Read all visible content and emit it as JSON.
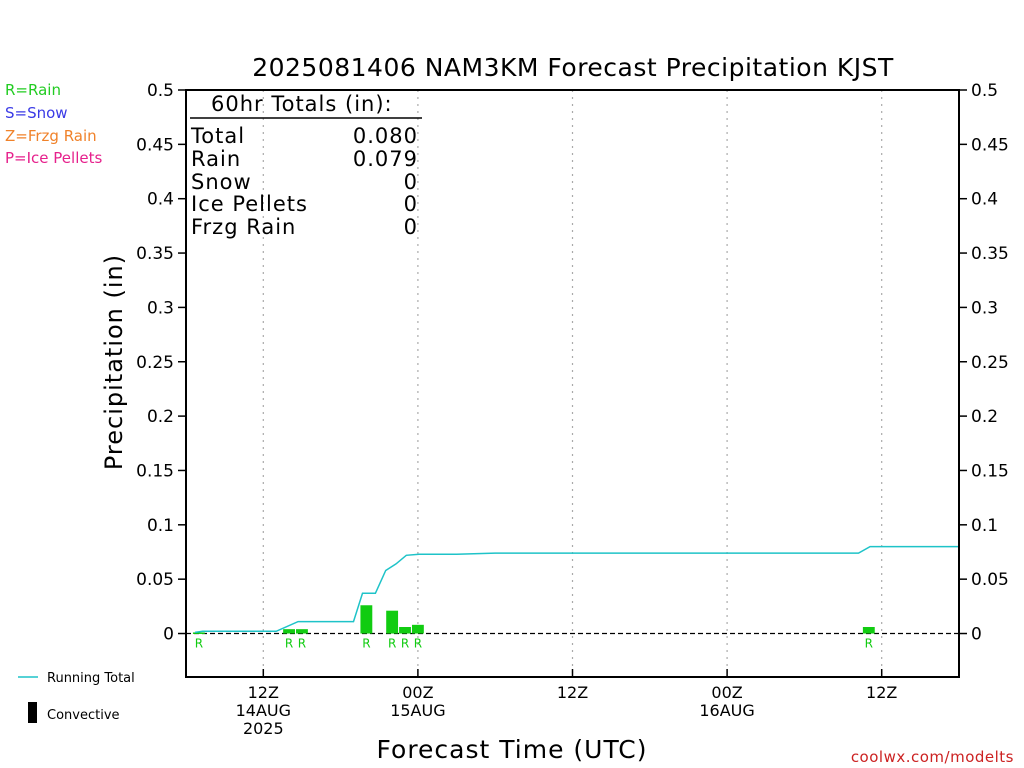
{
  "chart_data": {
    "type": "bar",
    "title": "2025081406 NAM3KM Forecast Precipitation KJST",
    "xlabel": "Forecast Time (UTC)",
    "ylabel": "Precipitation (in)",
    "ylim": [
      -0.04,
      0.5
    ],
    "yticks": [
      0,
      0.05,
      0.1,
      0.15,
      0.2,
      0.25,
      0.3,
      0.35,
      0.4,
      0.45,
      0.5
    ],
    "ytick_labels": [
      "0",
      "0.05",
      "0.1",
      "0.15",
      "0.2",
      "0.25",
      "0.3",
      "0.35",
      "0.4",
      "0.45",
      "0.5"
    ],
    "xlim_hours": [
      6,
      66
    ],
    "x_ticks": [
      {
        "hour": 12,
        "lines": [
          "12Z",
          "14AUG",
          "2025"
        ]
      },
      {
        "hour": 24,
        "lines": [
          "00Z",
          "15AUG"
        ]
      },
      {
        "hour": 36,
        "lines": [
          "12Z"
        ]
      },
      {
        "hour": 48,
        "lines": [
          "00Z",
          "16AUG"
        ]
      },
      {
        "hour": 60,
        "lines": [
          "12Z"
        ]
      }
    ],
    "grid": true,
    "precip_bars": [
      {
        "hour": 7,
        "value": 0.001,
        "type": "R"
      },
      {
        "hour": 14,
        "value": 0.004,
        "type": "R"
      },
      {
        "hour": 15,
        "value": 0.004,
        "type": "R"
      },
      {
        "hour": 20,
        "value": 0.026,
        "type": "R"
      },
      {
        "hour": 22,
        "value": 0.021,
        "type": "R"
      },
      {
        "hour": 23,
        "value": 0.006,
        "type": "R"
      },
      {
        "hour": 24,
        "value": 0.008,
        "type": "R"
      },
      {
        "hour": 59,
        "value": 0.006,
        "type": "R"
      }
    ],
    "running_total": {
      "name": "Running Total",
      "x": [
        6.7,
        7.3,
        13,
        14.7,
        19,
        19.7,
        20.7,
        21.5,
        22.3,
        23.1,
        24.1,
        27,
        30,
        36,
        40,
        48,
        54,
        58.2,
        59.1,
        60,
        66
      ],
      "y": [
        0.001,
        0.002,
        0.002,
        0.011,
        0.011,
        0.037,
        0.037,
        0.058,
        0.064,
        0.072,
        0.073,
        0.073,
        0.074,
        0.074,
        0.074,
        0.074,
        0.074,
        0.074,
        0.08,
        0.08,
        0.08
      ]
    },
    "legend": [
      {
        "label": "R=Rain",
        "color": "#22cc22"
      },
      {
        "label": "S=Snow",
        "color": "#3a3ae6"
      },
      {
        "label": "Z=Frzg Rain",
        "color": "#f0822a"
      },
      {
        "label": "P=Ice Pellets",
        "color": "#e6218c"
      }
    ],
    "bottom_legend": [
      {
        "label": "Running Total",
        "kind": "line",
        "color": "#1ec3c8"
      },
      {
        "label": "Convective",
        "kind": "bar",
        "color": "#000000"
      }
    ],
    "totals_box": {
      "header": "60hr Totals (in):",
      "rows": [
        {
          "label": "Total",
          "value": "0.080"
        },
        {
          "label": "Rain",
          "value": "0.079"
        },
        {
          "label": "Snow",
          "value": "0"
        },
        {
          "label": "Ice Pellets",
          "value": "0"
        },
        {
          "label": "Frzg Rain",
          "value": "0"
        }
      ]
    },
    "colors": {
      "rain": "#11cc11",
      "running_total": "#1ec3c8",
      "axis": "#000000",
      "grid": "#aaaaaa",
      "credit": "#cc2222"
    },
    "credit": "coolwx.com/modelts"
  }
}
